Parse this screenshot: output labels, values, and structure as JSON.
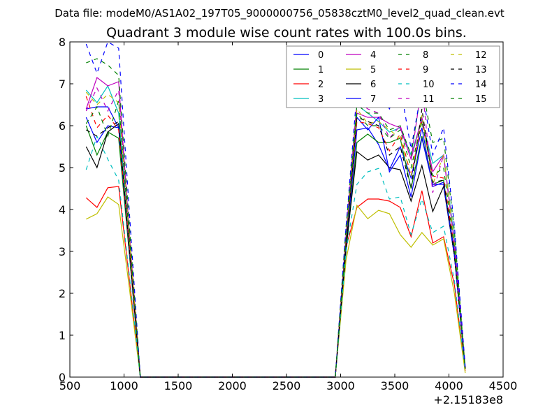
{
  "suptitle": "Data file: modeM0/AS1A02_197T05_9000000756_05838cztM0_level2_quad_clean.evt",
  "chart_data": {
    "type": "line",
    "title": "Quadrant 3 module wise count rates with 100.0s bins.",
    "xlabel": "",
    "ylabel": "",
    "x_offset_label": "+2.15183e8",
    "xlim": [
      500,
      4500
    ],
    "ylim": [
      0,
      8
    ],
    "xticks": [
      500,
      1000,
      1500,
      2000,
      2500,
      3000,
      3500,
      4000,
      4500
    ],
    "yticks": [
      0,
      1,
      2,
      3,
      4,
      5,
      6,
      7,
      8
    ],
    "legend_position": "top-right",
    "legend_columns": 4,
    "x": [
      650,
      750,
      850,
      950,
      1050,
      1150,
      1250,
      1350,
      1450,
      1550,
      1650,
      1750,
      1850,
      1950,
      2050,
      2150,
      2250,
      2350,
      2450,
      2550,
      2650,
      2750,
      2850,
      2950,
      3050,
      3150,
      3250,
      3350,
      3450,
      3550,
      3650,
      3750,
      3850,
      3950,
      4050,
      4150
    ],
    "series": [
      {
        "name": "0",
        "color": "#0000ff",
        "dashed": false,
        "values": [
          6.2,
          5.6,
          6.0,
          5.95,
          3.0,
          0,
          0,
          0,
          0,
          0,
          0,
          0,
          0,
          0,
          0,
          0,
          0,
          0,
          0,
          0,
          0,
          0,
          0,
          0,
          3.1,
          5.9,
          5.95,
          5.55,
          4.95,
          5.5,
          4.75,
          5.95,
          4.55,
          4.65,
          3.0,
          0.2
        ]
      },
      {
        "name": "1",
        "color": "#008000",
        "dashed": false,
        "values": [
          6.0,
          5.3,
          5.85,
          5.7,
          2.9,
          0,
          0,
          0,
          0,
          0,
          0,
          0,
          0,
          0,
          0,
          0,
          0,
          0,
          0,
          0,
          0,
          0,
          0,
          0,
          3.0,
          5.6,
          5.8,
          5.6,
          5.6,
          5.7,
          4.5,
          5.75,
          4.6,
          4.7,
          2.9,
          0.2
        ]
      },
      {
        "name": "2",
        "color": "#ff0000",
        "dashed": false,
        "values": [
          4.28,
          4.05,
          4.52,
          4.55,
          2.3,
          0,
          0,
          0,
          0,
          0,
          0,
          0,
          0,
          0,
          0,
          0,
          0,
          0,
          0,
          0,
          0,
          0,
          0,
          0,
          3.1,
          4.05,
          4.25,
          4.25,
          4.2,
          4.05,
          3.35,
          4.45,
          3.2,
          3.35,
          2.2,
          0.15
        ]
      },
      {
        "name": "3",
        "color": "#00bfbf",
        "dashed": false,
        "values": [
          6.85,
          6.55,
          6.95,
          6.3,
          3.2,
          0,
          0,
          0,
          0,
          0,
          0,
          0,
          0,
          0,
          0,
          0,
          0,
          0,
          0,
          0,
          0,
          0,
          0,
          0,
          3.2,
          6.5,
          6.3,
          6.1,
          5.85,
          5.95,
          5.3,
          6.15,
          5.1,
          5.3,
          3.3,
          0.2
        ]
      },
      {
        "name": "4",
        "color": "#bf00bf",
        "dashed": false,
        "values": [
          6.4,
          7.15,
          6.95,
          7.05,
          3.4,
          0,
          0,
          0,
          0,
          0,
          0,
          0,
          0,
          0,
          0,
          0,
          0,
          0,
          0,
          0,
          0,
          0,
          0,
          0,
          3.3,
          6.3,
          6.2,
          6.2,
          6.05,
          5.95,
          5.2,
          6.2,
          4.9,
          5.3,
          3.2,
          0.2
        ]
      },
      {
        "name": "5",
        "color": "#bfbf00",
        "dashed": false,
        "values": [
          3.77,
          3.9,
          4.3,
          4.12,
          2.1,
          0,
          0,
          0,
          0,
          0,
          0,
          0,
          0,
          0,
          0,
          0,
          0,
          0,
          0,
          0,
          0,
          0,
          0,
          0,
          2.8,
          4.1,
          3.78,
          3.98,
          3.9,
          3.4,
          3.1,
          3.45,
          3.15,
          3.3,
          2.0,
          0.1
        ]
      },
      {
        "name": "6",
        "color": "#000000",
        "dashed": false,
        "values": [
          5.5,
          5.0,
          5.85,
          6.05,
          3.0,
          0,
          0,
          0,
          0,
          0,
          0,
          0,
          0,
          0,
          0,
          0,
          0,
          0,
          0,
          0,
          0,
          0,
          0,
          0,
          3.1,
          5.38,
          5.18,
          5.3,
          5.0,
          4.95,
          4.2,
          5.05,
          3.95,
          4.55,
          2.9,
          0.2
        ]
      },
      {
        "name": "7",
        "color": "#0000ff",
        "dashed": false,
        "values": [
          6.4,
          6.45,
          6.45,
          5.95,
          3.0,
          0,
          0,
          0,
          0,
          0,
          0,
          0,
          0,
          0,
          0,
          0,
          0,
          0,
          0,
          0,
          0,
          0,
          0,
          0,
          3.2,
          6.2,
          5.9,
          6.2,
          4.9,
          5.3,
          4.3,
          5.7,
          4.6,
          4.6,
          2.9,
          0.2
        ]
      },
      {
        "name": "8",
        "color": "#008000",
        "dashed": true,
        "values": [
          7.5,
          7.6,
          7.45,
          7.2,
          3.6,
          0,
          0,
          0,
          0,
          0,
          0,
          0,
          0,
          0,
          0,
          0,
          0,
          0,
          0,
          0,
          0,
          0,
          0,
          0,
          3.6,
          6.5,
          6.3,
          6.3,
          5.9,
          6.0,
          5.3,
          6.95,
          5.6,
          5.7,
          3.5,
          0.2
        ]
      },
      {
        "name": "9",
        "color": "#ff0000",
        "dashed": true,
        "values": [
          6.7,
          5.95,
          6.25,
          5.9,
          3.1,
          0,
          0,
          0,
          0,
          0,
          0,
          0,
          0,
          0,
          0,
          0,
          0,
          0,
          0,
          0,
          0,
          0,
          0,
          0,
          3.3,
          6.1,
          6.05,
          5.95,
          5.4,
          5.8,
          4.8,
          6.1,
          4.8,
          4.75,
          3.1,
          0.2
        ]
      },
      {
        "name": "10",
        "color": "#00bfbf",
        "dashed": true,
        "values": [
          4.95,
          5.75,
          5.2,
          4.7,
          2.4,
          0,
          0,
          0,
          0,
          0,
          0,
          0,
          0,
          0,
          0,
          0,
          0,
          0,
          0,
          0,
          0,
          0,
          0,
          0,
          3.0,
          4.6,
          4.9,
          4.98,
          4.25,
          4.3,
          3.4,
          4.25,
          3.45,
          3.6,
          2.3,
          0.15
        ]
      },
      {
        "name": "11",
        "color": "#bf00bf",
        "dashed": true,
        "values": [
          6.35,
          6.9,
          6.35,
          6.85,
          3.4,
          0,
          0,
          0,
          0,
          0,
          0,
          0,
          0,
          0,
          0,
          0,
          0,
          0,
          0,
          0,
          0,
          0,
          0,
          0,
          3.4,
          6.6,
          6.4,
          6.3,
          5.7,
          6.0,
          5.2,
          7.0,
          4.4,
          5.3,
          3.2,
          0.2
        ]
      },
      {
        "name": "12",
        "color": "#bfbf00",
        "dashed": true,
        "values": [
          6.8,
          6.5,
          6.75,
          6.55,
          3.3,
          0,
          0,
          0,
          0,
          0,
          0,
          0,
          0,
          0,
          0,
          0,
          0,
          0,
          0,
          0,
          0,
          0,
          0,
          0,
          3.3,
          6.4,
          6.05,
          6.1,
          5.9,
          5.7,
          4.8,
          6.25,
          4.6,
          5.3,
          3.2,
          0.2
        ]
      },
      {
        "name": "13",
        "color": "#000000",
        "dashed": true,
        "values": [
          5.9,
          5.75,
          5.95,
          6.1,
          3.0,
          0,
          0,
          0,
          0,
          0,
          0,
          0,
          0,
          0,
          0,
          0,
          0,
          0,
          0,
          0,
          0,
          0,
          0,
          0,
          3.2,
          6.2,
          6.1,
          6.0,
          5.3,
          5.5,
          4.5,
          6.4,
          4.65,
          4.7,
          2.9,
          0.2
        ]
      },
      {
        "name": "14",
        "color": "#0000ff",
        "dashed": true,
        "values": [
          7.95,
          7.25,
          8.0,
          7.85,
          3.9,
          0,
          0,
          0,
          0,
          0,
          0,
          0,
          0,
          0,
          0,
          0,
          0,
          0,
          0,
          0,
          0,
          0,
          0,
          0,
          3.6,
          6.8,
          6.75,
          6.85,
          6.4,
          6.95,
          5.45,
          6.9,
          5.3,
          5.95,
          3.6,
          0.25
        ]
      },
      {
        "name": "15",
        "color": "#008000",
        "dashed": true,
        "values": [
          6.05,
          6.45,
          5.75,
          6.6,
          3.3,
          0,
          0,
          0,
          0,
          0,
          0,
          0,
          0,
          0,
          0,
          0,
          0,
          0,
          0,
          0,
          0,
          0,
          0,
          0,
          3.3,
          6.3,
          6.0,
          6.0,
          5.7,
          5.9,
          5.0,
          6.1,
          4.8,
          5.0,
          3.1,
          0.2
        ]
      }
    ]
  }
}
